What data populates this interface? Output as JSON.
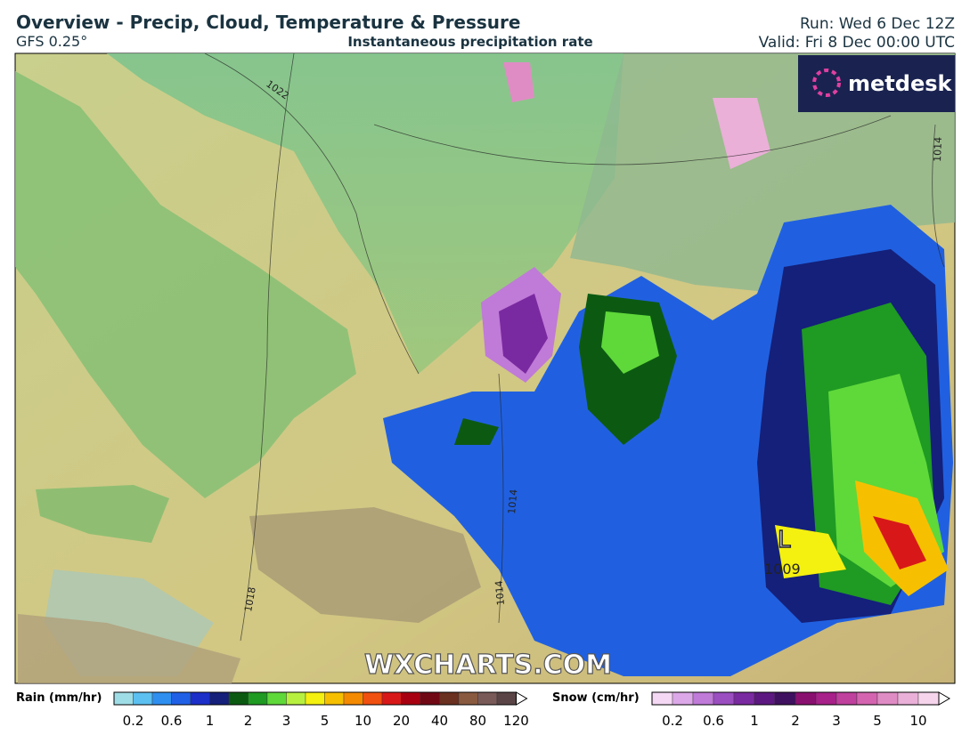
{
  "header": {
    "title": "Overview - Precip, Cloud, Temperature & Pressure",
    "model": "GFS 0.25°",
    "subtitle": "Instantaneous precipitation rate",
    "run": "Run: Wed 6 Dec 12Z",
    "valid": "Valid: Fri 8 Dec 00:00 UTC"
  },
  "map": {
    "brand": "metdesk",
    "watermark": "WXCHARTS.COM",
    "low_marker": "L",
    "low_pressure": "1009",
    "isobar_labels": [
      "1022",
      "1014",
      "1014",
      "1014",
      "1018"
    ]
  },
  "legend": {
    "rain": {
      "title": "Rain (mm/hr)",
      "ticks": [
        "0.2",
        "0.6",
        "1",
        "2",
        "3",
        "5",
        "10",
        "20",
        "40",
        "80",
        "120"
      ],
      "colors": [
        "#9fdde6",
        "#5cc0f0",
        "#2f8ff0",
        "#2060e6",
        "#1c2fc8",
        "#14207a",
        "#0c5a12",
        "#1f9a22",
        "#5fd83a",
        "#b8f040",
        "#f4f010",
        "#f6c000",
        "#f48a00",
        "#f05010",
        "#d81818",
        "#a80010",
        "#700814",
        "#6a3020",
        "#8a5a40",
        "#7a5a58",
        "#5a4446"
      ]
    },
    "snow": {
      "title": "Snow (cm/hr)",
      "ticks": [
        "0.2",
        "0.6",
        "1",
        "2",
        "3",
        "5",
        "10"
      ],
      "colors": [
        "#f4d8f4",
        "#dca8e8",
        "#c07ad8",
        "#9a4ec0",
        "#7a2aa0",
        "#5c1880",
        "#401060",
        "#8a1070",
        "#a8208a",
        "#c0409e",
        "#d464b0",
        "#e08cc4",
        "#eab0d8",
        "#f6d4ec"
      ]
    }
  }
}
